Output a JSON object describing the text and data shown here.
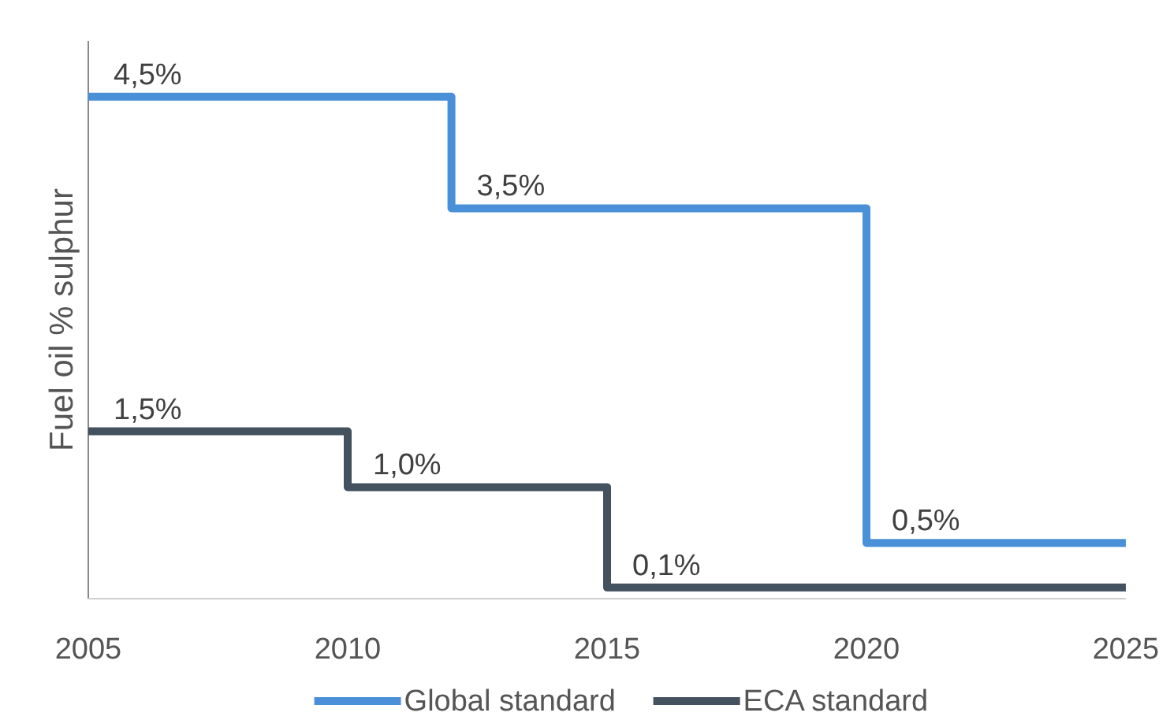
{
  "chart_data": {
    "type": "step",
    "ylabel": "Fuel oil % sulphur",
    "xlim": [
      2005,
      2025
    ],
    "xticks": [
      2005,
      2010,
      2015,
      2020,
      2025
    ],
    "ylim": [
      0,
      5
    ],
    "tick_labels": "x",
    "grid": false,
    "legend": "bottom",
    "marker": "none",
    "line_style": "solid",
    "series": [
      {
        "name": "Global standard",
        "color": "#4a90d9",
        "x": [
          2005,
          2012,
          2020,
          2025
        ],
        "values": [
          4.5,
          3.5,
          0.5,
          0.5
        ],
        "value_labels": [
          "4,5%",
          "3,5%",
          "0,5%",
          null
        ]
      },
      {
        "name": "ECA standard",
        "color": "#44525f",
        "x": [
          2005,
          2010,
          2015,
          2025
        ],
        "values": [
          1.5,
          1.0,
          0.1,
          0.1
        ],
        "value_labels": [
          "1,5%",
          "1,0%",
          "0,1%",
          null
        ]
      }
    ]
  }
}
